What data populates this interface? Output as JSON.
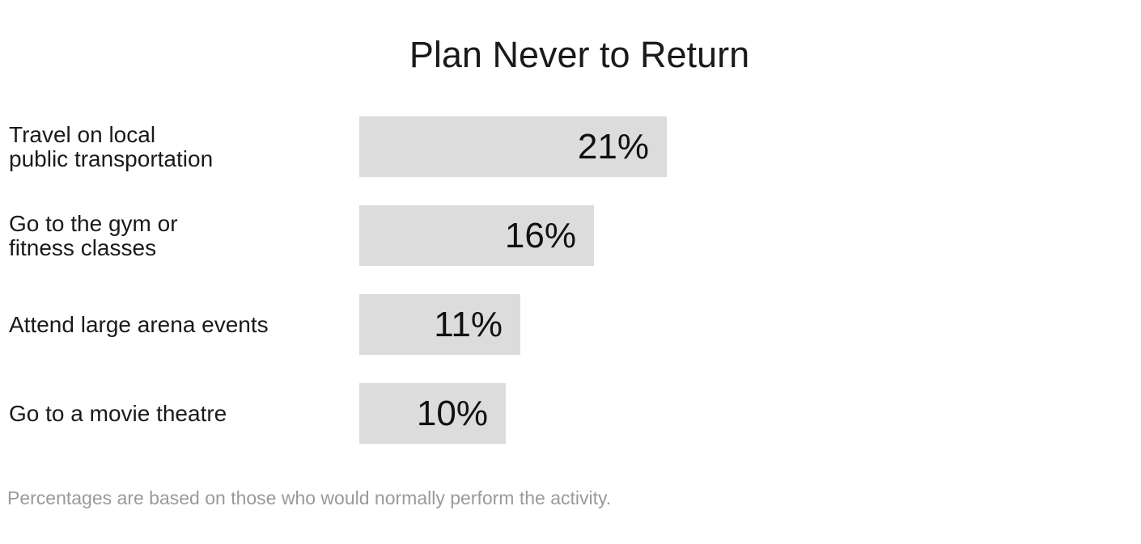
{
  "chart_data": {
    "type": "bar",
    "orientation": "horizontal",
    "title": "Plan Never to Return",
    "categories": [
      [
        "Travel on local",
        "public transportation"
      ],
      [
        "Go to the gym or",
        "fitness classes"
      ],
      [
        "Attend large arena events"
      ],
      [
        "Go to a movie theatre"
      ]
    ],
    "values": [
      21,
      16,
      11,
      10
    ],
    "value_labels": [
      "21%",
      "16%",
      "11%",
      "10%"
    ],
    "unit": "%",
    "bar_color": "#dcdcdd",
    "grid": false,
    "legend": "none"
  },
  "footnote": "Percentages are based on those who would normally perform the activity."
}
